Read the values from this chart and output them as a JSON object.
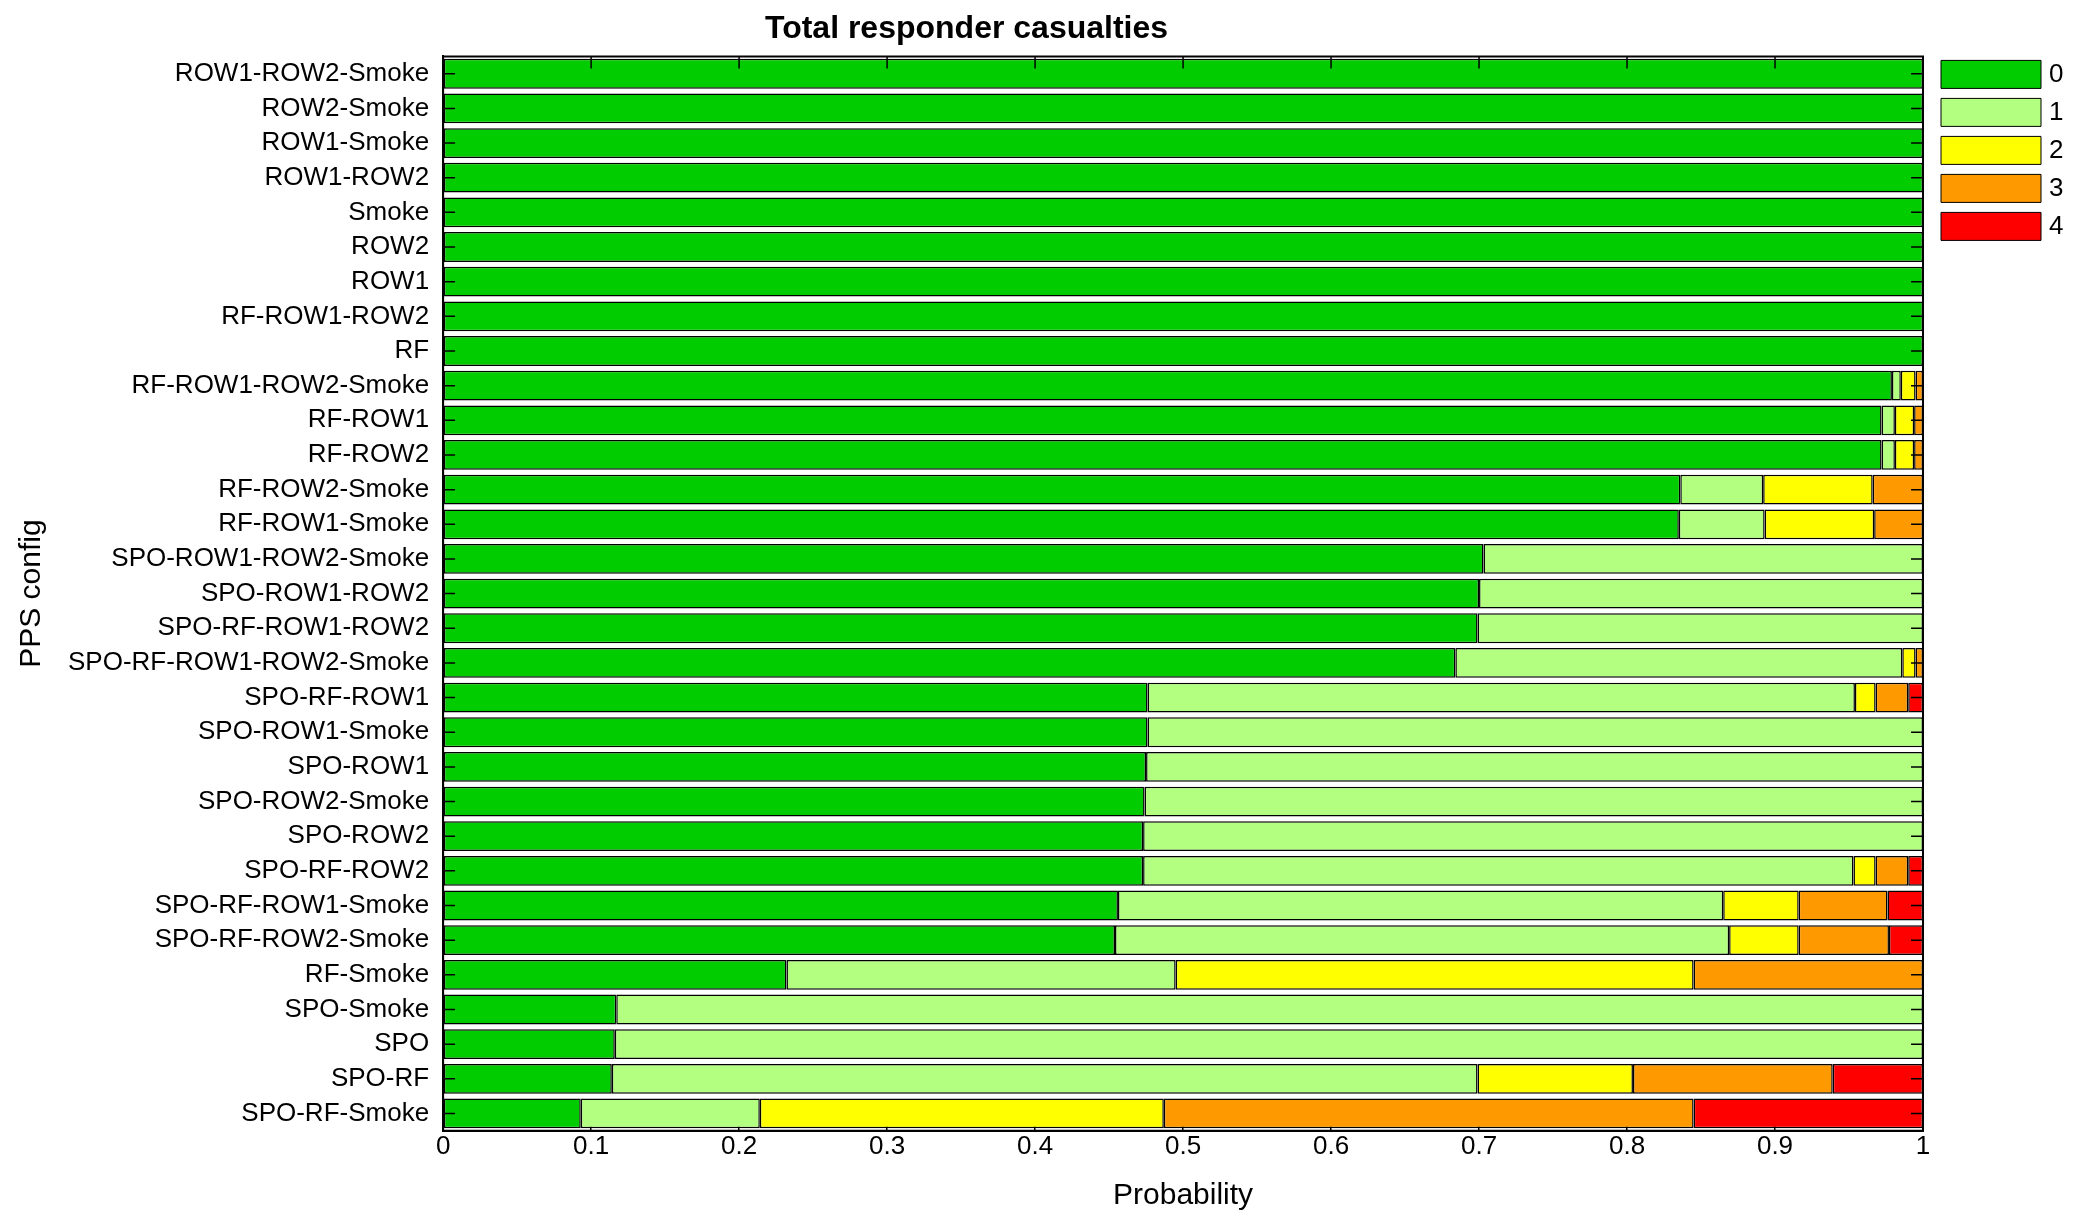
{
  "chart_data": {
    "type": "bar",
    "title": "Total responder casualties",
    "xlabel": "Probability",
    "ylabel": "PPS config",
    "orientation": "horizontal",
    "stacked": true,
    "legend": "top right",
    "grid": false,
    "categories": [
      "ROW1-ROW2-Smoke",
      "ROW2-Smoke",
      "ROW1-Smoke",
      "ROW1-ROW2",
      "Smoke",
      "ROW2",
      "ROW1",
      "RF-ROW1-ROW2",
      "RF",
      "RF-ROW1-ROW2-Smoke",
      "RF-ROW1",
      "RF-ROW2",
      "RF-ROW2-Smoke",
      "RF-ROW1-Smoke",
      "SPO-ROW1-ROW2-Smoke",
      "SPO-ROW1-ROW2",
      "SPO-RF-ROW1-ROW2",
      "SPO-RF-ROW1-ROW2-Smoke",
      "SPO-RF-ROW1",
      "SPO-ROW1-Smoke",
      "SPO-ROW1",
      "SPO-ROW2-Smoke",
      "SPO-ROW2",
      "SPO-RF-ROW2",
      "SPO-RF-ROW1-Smoke",
      "SPO-RF-ROW2-Smoke",
      "RF-Smoke",
      "SPO-Smoke",
      "SPO",
      "SPO-RF",
      "SPO-RF-Smoke"
    ],
    "series": [
      {
        "name": "0",
        "color": "#00cc00",
        "values": [
          1,
          1,
          1,
          1,
          1,
          1,
          1,
          1,
          1,
          0.979,
          0.972,
          0.972,
          0.836,
          0.835,
          0.703,
          0.7,
          0.699,
          0.684,
          0.476,
          0.476,
          0.475,
          0.474,
          0.473,
          0.473,
          0.456,
          0.454,
          0.232,
          0.117,
          0.116,
          0.114,
          0.093
        ]
      },
      {
        "name": "1",
        "color": "#b3ff80",
        "values": [
          null,
          null,
          null,
          null,
          null,
          null,
          null,
          null,
          null,
          0.006,
          0.009,
          0.009,
          0.056,
          0.058,
          0.297,
          0.3,
          0.301,
          0.302,
          0.478,
          0.524,
          0.525,
          0.526,
          0.527,
          0.48,
          0.409,
          0.415,
          0.263,
          0.883,
          0.884,
          0.585,
          0.121
        ]
      },
      {
        "name": "2",
        "color": "#ffff00",
        "values": [
          null,
          null,
          null,
          null,
          null,
          null,
          null,
          null,
          null,
          0.01,
          0.013,
          0.013,
          0.074,
          0.074,
          null,
          null,
          null,
          0.009,
          0.014,
          null,
          null,
          null,
          null,
          0.015,
          0.051,
          0.047,
          0.35,
          null,
          null,
          0.105,
          0.273
        ]
      },
      {
        "name": "3",
        "color": "#ff9900",
        "values": [
          null,
          null,
          null,
          null,
          null,
          null,
          null,
          null,
          null,
          0.005,
          0.006,
          0.006,
          0.034,
          0.033,
          null,
          null,
          null,
          0.005,
          0.022,
          null,
          null,
          null,
          null,
          0.022,
          0.06,
          0.061,
          0.155,
          null,
          null,
          0.135,
          0.358
        ]
      },
      {
        "name": "4",
        "color": "#ff0000",
        "values": [
          null,
          null,
          null,
          null,
          null,
          null,
          null,
          null,
          null,
          null,
          null,
          null,
          null,
          null,
          null,
          null,
          null,
          null,
          0.01,
          null,
          null,
          null,
          null,
          0.01,
          0.024,
          0.023,
          null,
          null,
          null,
          0.061,
          0.155
        ]
      }
    ],
    "xlim": [
      0,
      1
    ],
    "xticks": [
      0,
      0.1,
      0.2,
      0.3,
      0.4,
      0.5,
      0.6,
      0.7,
      0.8,
      0.9,
      1
    ]
  }
}
